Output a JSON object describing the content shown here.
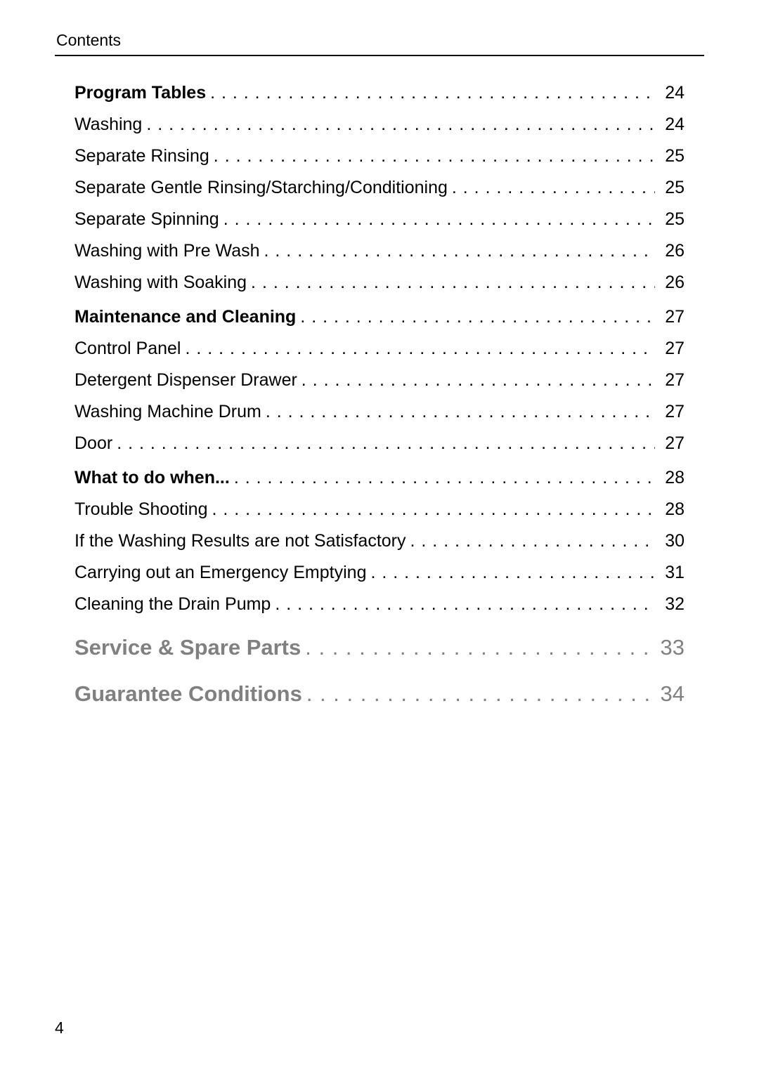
{
  "header": "Contents",
  "page_number": "4",
  "dot_fill": ". . . . . . . . . . . . . . . . . . . . . . . . . . . . . . . . . . . . . . . . . . . . . . . . . . . . . . . . . . . . . . . . . . . . . . . . . . . . . . . . . . . . . . . . . . . . . . . . . . . . . . . . . . . . . .",
  "toc": {
    "sections": [
      {
        "kind": "bold",
        "title": "Program Tables",
        "page": "24"
      },
      {
        "kind": "row",
        "title": "Washing",
        "page": "24"
      },
      {
        "kind": "row",
        "title": "Separate Rinsing",
        "page": "25"
      },
      {
        "kind": "row",
        "title": "Separate Gentle Rinsing/Starching/Conditioning",
        "page": "25"
      },
      {
        "kind": "row",
        "title": "Separate Spinning",
        "page": "25"
      },
      {
        "kind": "row",
        "title": "Washing with Pre Wash",
        "page": "26"
      },
      {
        "kind": "row",
        "title": "Washing with Soaking",
        "page": "26"
      },
      {
        "kind": "bold",
        "title": "Maintenance and Cleaning",
        "page": "27",
        "spacing": "sp-top"
      },
      {
        "kind": "row",
        "title": "Control Panel",
        "page": "27"
      },
      {
        "kind": "row",
        "title": "Detergent Dispenser Drawer",
        "page": "27"
      },
      {
        "kind": "row",
        "title": "Washing Machine Drum",
        "page": "27"
      },
      {
        "kind": "row",
        "title": "Door",
        "page": "27"
      },
      {
        "kind": "bold",
        "title": "What to do when...",
        "page": "28",
        "spacing": "sp-top"
      },
      {
        "kind": "row",
        "title": "Trouble Shooting",
        "page": "28"
      },
      {
        "kind": "row",
        "title": "If the Washing Results are not Satisfactory",
        "page": "30"
      },
      {
        "kind": "row",
        "title": "Carrying out an Emergency Emptying",
        "page": "31"
      },
      {
        "kind": "row",
        "title": "Cleaning the Drain Pump",
        "page": "32"
      },
      {
        "kind": "heading",
        "title": "Service & Spare Parts",
        "page": "33",
        "spacing": "sp-top-head"
      },
      {
        "kind": "heading",
        "title": "Guarantee Conditions",
        "page": "34",
        "spacing": "sp-top-head"
      }
    ]
  },
  "style": {
    "body_font_size_pt": 19,
    "body_color": "#000000",
    "heading_font_size_pt": 23,
    "heading_color": "#808080",
    "background_color": "#ffffff",
    "rule_color": "#000000",
    "font_family": "sans-serif"
  }
}
